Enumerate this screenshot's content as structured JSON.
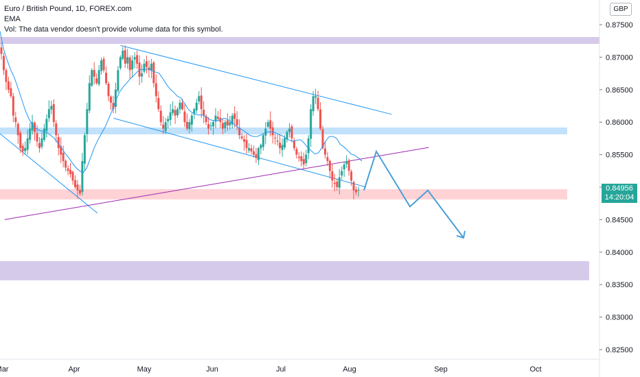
{
  "legend": {
    "title": "Euro / British Pound, 1D, FOREX.com",
    "indicator": "EMA",
    "volume_note": "Vol: The data vendor doesn't provide volume data for this symbol."
  },
  "currency_label": "GBP",
  "last_price": {
    "value": "0.84956",
    "countdown": "14:20:04",
    "color": "#26a69a"
  },
  "chart_data": {
    "type": "candlestick",
    "symbol": "EURGBP",
    "timeframe": "1D",
    "y_axis": {
      "ticks": [
        "0.87500",
        "0.87000",
        "0.86500",
        "0.86000",
        "0.85500",
        "0.85000",
        "0.84500",
        "0.84000",
        "0.83500",
        "0.83000",
        "0.82500"
      ],
      "range": [
        0.8235,
        0.8775
      ]
    },
    "x_axis": {
      "ticks": [
        "Mar",
        "Apr",
        "May",
        "Jun",
        "Jul",
        "Aug",
        "Sep",
        "Oct"
      ]
    },
    "colors": {
      "up": "#26a69a",
      "down": "#ef5350",
      "ema": "#2196f3",
      "trendline": "#2196f3",
      "support_line": "#9c27b0",
      "projection": "#2196f3",
      "zone_purple": "#d1c4e9",
      "zone_blue": "#bbdefb",
      "zone_red": "#ffcdd2"
    },
    "zones": [
      {
        "name": "upper-resistance-zone",
        "low": 0.8723,
        "high": 0.873,
        "color": "#d1c4e9"
      },
      {
        "name": "middle-resistance-zone",
        "low": 0.8584,
        "high": 0.8589,
        "color": "#bbdefb"
      },
      {
        "name": "support-zone",
        "low": 0.8481,
        "high": 0.8497,
        "color": "#ffcdd2"
      },
      {
        "name": "lower-target-zone",
        "low": 0.8357,
        "high": 0.8385,
        "color": "#d1c4e9"
      }
    ],
    "closes": [
      0.8705,
      0.868,
      0.8662,
      0.865,
      0.864,
      0.861,
      0.86,
      0.858,
      0.856,
      0.8555,
      0.856,
      0.8575,
      0.859,
      0.86,
      0.8585,
      0.857,
      0.856,
      0.8575,
      0.859,
      0.8605,
      0.862,
      0.8625,
      0.86,
      0.858,
      0.856,
      0.855,
      0.854,
      0.853,
      0.8525,
      0.852,
      0.851,
      0.85,
      0.8495,
      0.849,
      0.854,
      0.858,
      0.862,
      0.866,
      0.868,
      0.867,
      0.866,
      0.868,
      0.8695,
      0.868,
      0.866,
      0.864,
      0.863,
      0.862,
      0.865,
      0.868,
      0.87,
      0.871,
      0.869,
      0.87,
      0.868,
      0.8695,
      0.87,
      0.869,
      0.867,
      0.8675,
      0.869,
      0.8685,
      0.868,
      0.869,
      0.866,
      0.864,
      0.862,
      0.86,
      0.859,
      0.86,
      0.8605,
      0.8615,
      0.862,
      0.861,
      0.862,
      0.863,
      0.862,
      0.86,
      0.859,
      0.86,
      0.861,
      0.862,
      0.863,
      0.864,
      0.862,
      0.861,
      0.86,
      0.859,
      0.8595,
      0.86,
      0.861,
      0.8605,
      0.86,
      0.859,
      0.86,
      0.8595,
      0.86,
      0.861,
      0.8605,
      0.8595,
      0.858,
      0.8575,
      0.857,
      0.856,
      0.856,
      0.8555,
      0.855,
      0.8545,
      0.856,
      0.8565,
      0.858,
      0.859,
      0.86,
      0.859,
      0.858,
      0.8575,
      0.857,
      0.856,
      0.8565,
      0.8575,
      0.8585,
      0.859,
      0.8575,
      0.856,
      0.855,
      0.8545,
      0.854,
      0.8535,
      0.855,
      0.8575,
      0.862,
      0.864,
      0.864,
      0.862,
      0.859,
      0.856,
      0.855,
      0.854,
      0.8525,
      0.851,
      0.8505,
      0.85,
      0.8515,
      0.8525,
      0.8535,
      0.854,
      0.8525,
      0.851,
      0.8495,
      0.8492,
      0.8496
    ],
    "ema_values": [
      0.874,
      0.8712,
      0.8695,
      0.868,
      0.8668,
      0.8652,
      0.8635,
      0.8618,
      0.8605,
      0.8595,
      0.859,
      0.8587,
      0.8586,
      0.8584,
      0.858,
      0.8575,
      0.8568,
      0.856,
      0.8552,
      0.8545,
      0.8537,
      0.853,
      0.8525,
      0.8522,
      0.853,
      0.8545,
      0.856,
      0.8572,
      0.8582,
      0.8592,
      0.8605,
      0.8618,
      0.8633,
      0.8646,
      0.8654,
      0.866,
      0.8667,
      0.8672,
      0.8678,
      0.8681,
      0.8681,
      0.8682,
      0.8679,
      0.8677,
      0.8675,
      0.8667,
      0.8658,
      0.8651,
      0.8646,
      0.864,
      0.8637,
      0.8629,
      0.862,
      0.8615,
      0.8612,
      0.8611,
      0.8611,
      0.8608,
      0.8604,
      0.8602,
      0.8602,
      0.8604,
      0.8606,
      0.8604,
      0.86,
      0.8595,
      0.8591,
      0.8588,
      0.8584,
      0.858,
      0.8578,
      0.8578,
      0.858,
      0.8583,
      0.8585,
      0.8585,
      0.8584,
      0.8581,
      0.8579,
      0.8575,
      0.8572,
      0.8571,
      0.8572,
      0.8573,
      0.8568,
      0.8561,
      0.8556,
      0.8551,
      0.8553,
      0.8561,
      0.8571,
      0.8578,
      0.8578,
      0.8575,
      0.8566,
      0.8562,
      0.8557,
      0.8551,
      0.8549,
      0.8545,
      0.854
    ],
    "channel": {
      "upper": {
        "start": [
          "2021-04-20",
          0.8718
        ],
        "end": [
          "2021-08-15",
          0.8612
        ]
      },
      "lower": {
        "start": [
          "2021-04-17",
          0.8606
        ],
        "end": [
          "2021-08-04",
          0.85
        ]
      },
      "early_lower": {
        "start": [
          "2021-03-01",
          0.859
        ],
        "end": [
          "2021-04-13",
          0.846
        ]
      }
    },
    "support_trendline": {
      "start": [
        "2021-03-01",
        0.845
      ],
      "end": [
        "2021-08-31",
        0.8561
      ]
    },
    "projection_path": [
      0.8495,
      0.8555,
      0.847,
      0.8495,
      0.8422
    ]
  }
}
